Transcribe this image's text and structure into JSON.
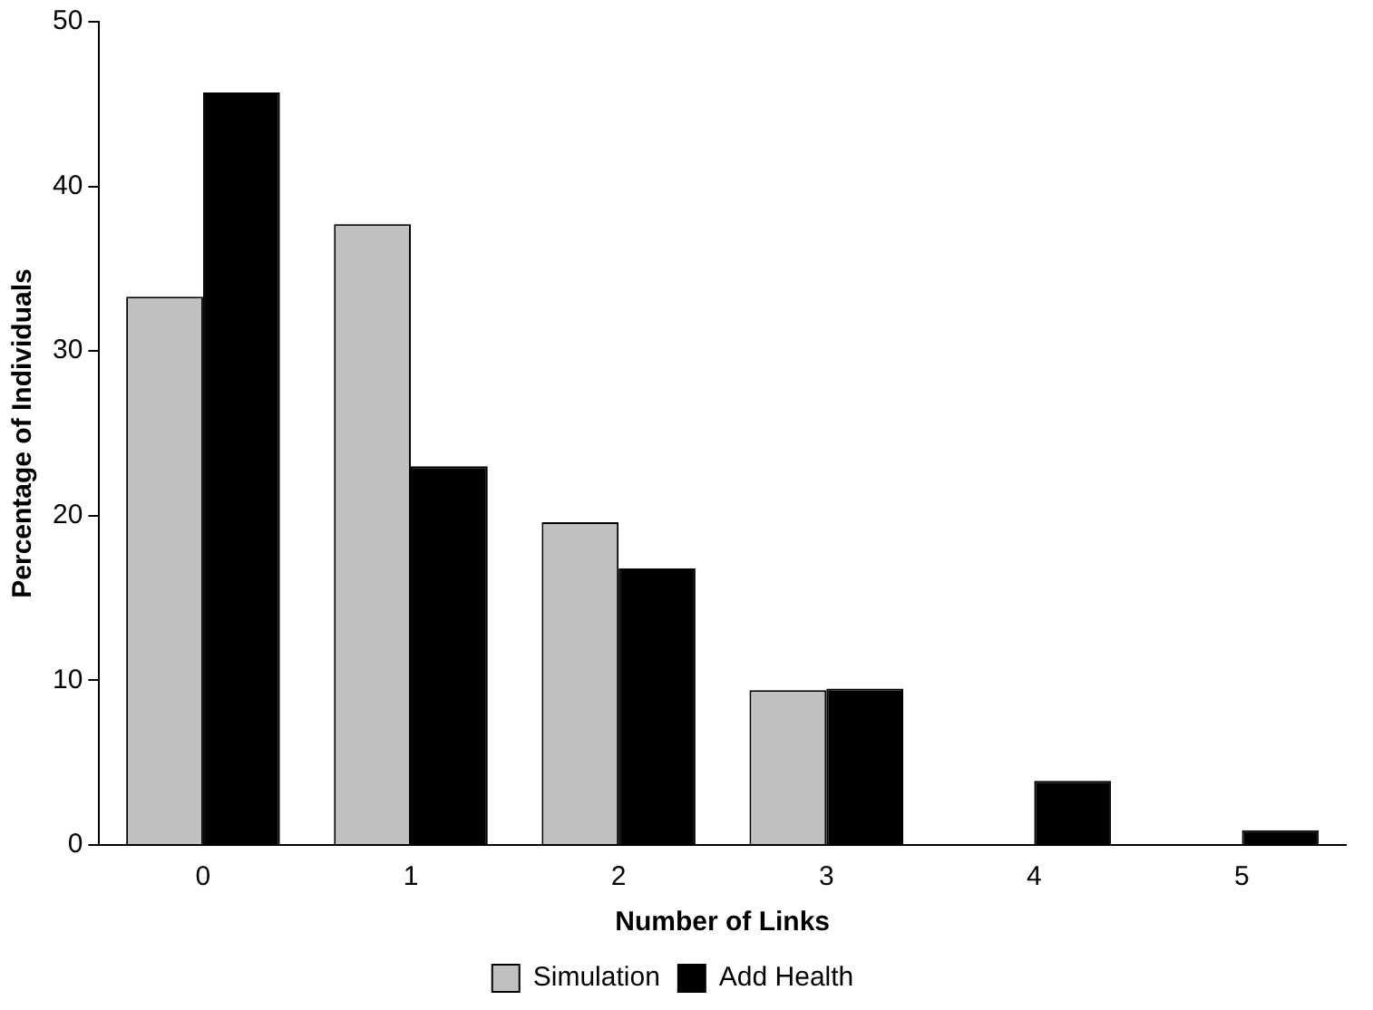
{
  "chart_data": {
    "type": "bar",
    "xlabel": "Number of Links",
    "ylabel": "Percentage of Individuals",
    "categories": [
      "0",
      "1",
      "2",
      "3",
      "4",
      "5"
    ],
    "series": [
      {
        "name": "Simulation",
        "color": "#c0c0c0",
        "values": [
          33.3,
          37.7,
          19.6,
          9.4,
          0,
          0
        ]
      },
      {
        "name": "Add Health",
        "color": "#000000",
        "values": [
          45.7,
          23.0,
          16.8,
          9.5,
          3.9,
          0.9
        ]
      }
    ],
    "ylim": [
      0,
      50
    ],
    "yticks": [
      0,
      10,
      20,
      30,
      40,
      50
    ],
    "grid": false,
    "legend": "bottom"
  }
}
